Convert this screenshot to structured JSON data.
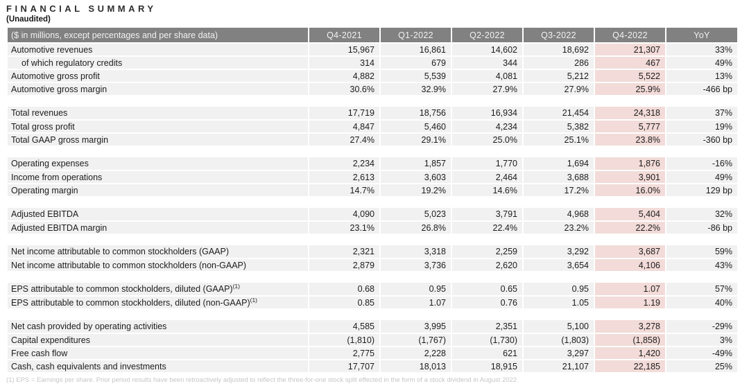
{
  "page": {
    "title": "FINANCIAL SUMMARY",
    "subtitle": "(Unaudited)"
  },
  "colors": {
    "header_bg": "#818181",
    "header_text": "#f2f2f2",
    "row_bg": "#f1f1f2",
    "hl_bg": "#f2dbd8"
  },
  "table": {
    "header": {
      "label": "($ in millions, except percentages and per share data)",
      "columns": [
        "Q4-2021",
        "Q1-2022",
        "Q2-2022",
        "Q3-2022",
        "Q4-2022",
        "YoY"
      ]
    },
    "highlight_column": "Q4-2022",
    "sections": [
      {
        "rows": [
          {
            "label": "Automotive revenues",
            "indent": false,
            "sup": "",
            "values": [
              "15,967",
              "16,861",
              "14,602",
              "18,692",
              "21,307",
              "33%"
            ]
          },
          {
            "label": "of which regulatory credits",
            "indent": true,
            "sup": "",
            "values": [
              "314",
              "679",
              "344",
              "286",
              "467",
              "49%"
            ]
          },
          {
            "label": "Automotive gross profit",
            "indent": false,
            "sup": "",
            "values": [
              "4,882",
              "5,539",
              "4,081",
              "5,212",
              "5,522",
              "13%"
            ]
          },
          {
            "label": "Automotive gross margin",
            "indent": false,
            "sup": "",
            "values": [
              "30.6%",
              "32.9%",
              "27.9%",
              "27.9%",
              "25.9%",
              "-466 bp"
            ]
          }
        ]
      },
      {
        "rows": [
          {
            "label": "Total revenues",
            "indent": false,
            "sup": "",
            "values": [
              "17,719",
              "18,756",
              "16,934",
              "21,454",
              "24,318",
              "37%"
            ]
          },
          {
            "label": "Total gross profit",
            "indent": false,
            "sup": "",
            "values": [
              "4,847",
              "5,460",
              "4,234",
              "5,382",
              "5,777",
              "19%"
            ]
          },
          {
            "label": "Total GAAP gross margin",
            "indent": false,
            "sup": "",
            "values": [
              "27.4%",
              "29.1%",
              "25.0%",
              "25.1%",
              "23.8%",
              "-360 bp"
            ]
          }
        ]
      },
      {
        "rows": [
          {
            "label": "Operating expenses",
            "indent": false,
            "sup": "",
            "values": [
              "2,234",
              "1,857",
              "1,770",
              "1,694",
              "1,876",
              "-16%"
            ]
          },
          {
            "label": "Income from operations",
            "indent": false,
            "sup": "",
            "values": [
              "2,613",
              "3,603",
              "2,464",
              "3,688",
              "3,901",
              "49%"
            ]
          },
          {
            "label": "Operating margin",
            "indent": false,
            "sup": "",
            "values": [
              "14.7%",
              "19.2%",
              "14.6%",
              "17.2%",
              "16.0%",
              "129 bp"
            ]
          }
        ]
      },
      {
        "rows": [
          {
            "label": "Adjusted EBITDA",
            "indent": false,
            "sup": "",
            "values": [
              "4,090",
              "5,023",
              "3,791",
              "4,968",
              "5,404",
              "32%"
            ]
          },
          {
            "label": "Adjusted EBITDA margin",
            "indent": false,
            "sup": "",
            "values": [
              "23.1%",
              "26.8%",
              "22.4%",
              "23.2%",
              "22.2%",
              "-86 bp"
            ]
          }
        ]
      },
      {
        "rows": [
          {
            "label": "Net income attributable to common stockholders (GAAP)",
            "indent": false,
            "sup": "",
            "values": [
              "2,321",
              "3,318",
              "2,259",
              "3,292",
              "3,687",
              "59%"
            ]
          },
          {
            "label": "Net income attributable to common stockholders (non-GAAP)",
            "indent": false,
            "sup": "",
            "values": [
              "2,879",
              "3,736",
              "2,620",
              "3,654",
              "4,106",
              "43%"
            ]
          }
        ]
      },
      {
        "rows": [
          {
            "label": "EPS attributable to common stockholders, diluted (GAAP)",
            "indent": false,
            "sup": "(1)",
            "values": [
              "0.68",
              "0.95",
              "0.65",
              "0.95",
              "1.07",
              "57%"
            ]
          },
          {
            "label": "EPS attributable to common stockholders, diluted (non-GAAP)",
            "indent": false,
            "sup": "(1)",
            "values": [
              "0.85",
              "1.07",
              "0.76",
              "1.05",
              "1.19",
              "40%"
            ]
          }
        ]
      },
      {
        "rows": [
          {
            "label": "Net cash provided by operating activities",
            "indent": false,
            "sup": "",
            "values": [
              "4,585",
              "3,995",
              "2,351",
              "5,100",
              "3,278",
              "-29%"
            ]
          },
          {
            "label": "Capital expenditures",
            "indent": false,
            "sup": "",
            "values": [
              "(1,810)",
              "(1,767)",
              "(1,730)",
              "(1,803)",
              "(1,858)",
              "3%"
            ]
          },
          {
            "label": "Free cash flow",
            "indent": false,
            "sup": "",
            "values": [
              "2,775",
              "2,228",
              "621",
              "3,297",
              "1,420",
              "-49%"
            ]
          },
          {
            "label": "Cash, cash equivalents and investments",
            "indent": false,
            "sup": "",
            "values": [
              "17,707",
              "18,013",
              "18,915",
              "21,107",
              "22,185",
              "25%"
            ]
          }
        ]
      }
    ],
    "footnote": "(1) EPS = Earnings per share. Prior period results have been retroactively adjusted to reflect the three-for-one stock split effected in the form of a stock dividend in August 2022"
  }
}
